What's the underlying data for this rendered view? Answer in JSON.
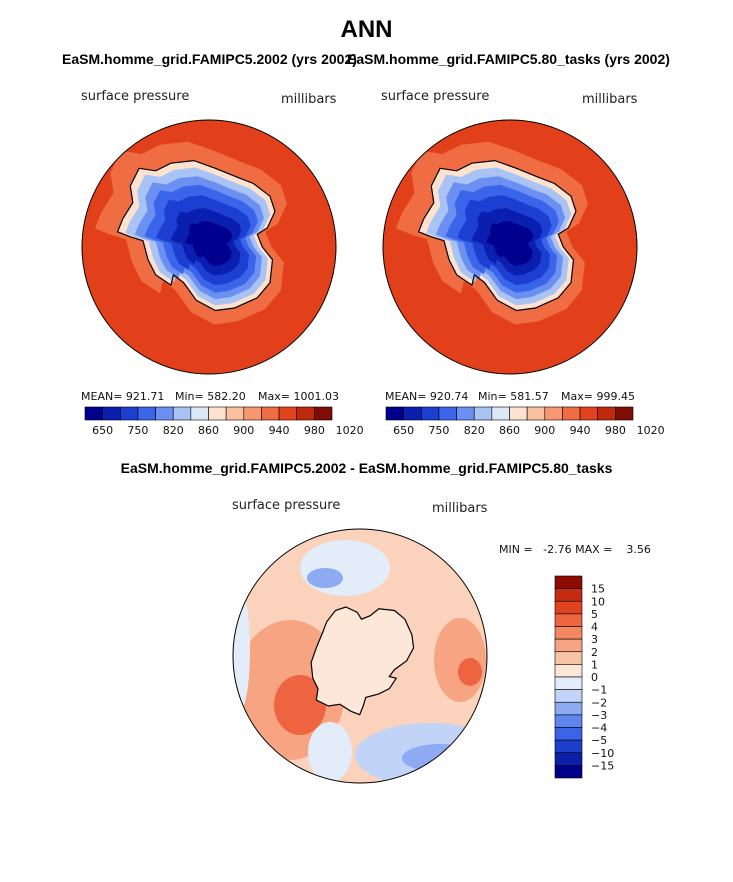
{
  "title": "ANN",
  "panel_titles": {
    "left": "EaSM.homme_grid.FAMIPC5.2002 (yrs 2002)",
    "right": "EaSM.homme_grid.FAMIPC5.80_tasks (yrs 2002)",
    "diff": "EaSM.homme_grid.FAMIPC5.2002 - EaSM.homme_grid.FAMIPC5.80_tasks"
  },
  "variable": "surface pressure",
  "units": "millibars",
  "colors": {
    "abs_scale": [
      "#00008f",
      "#0a1fb0",
      "#1c3fd1",
      "#3a64ea",
      "#6c8ff2",
      "#a9c3f5",
      "#dbe8f7",
      "#fde3cf",
      "#fbc0a0",
      "#f79870",
      "#f06c42",
      "#e1431c",
      "#bf2a0c",
      "#7f0d06"
    ],
    "diff_scale": [
      "#00008a",
      "#0b1fab",
      "#1c3ecb",
      "#3965e6",
      "#5e86ee",
      "#8eaaf3",
      "#c1d3f6",
      "#e2edf9",
      "#fde6d6",
      "#f9c3a6",
      "#f7a482",
      "#f48762",
      "#ee6440",
      "#e0441f",
      "#c62a11",
      "#8c0c04"
    ],
    "ocean_abs": "#e2401a",
    "ocean_abs_inner": "#f06c42",
    "diff_base": "#fbd2bb"
  },
  "chart_data": [
    {
      "type": "heatmap",
      "panel": "left",
      "projection": "south polar stereographic",
      "title": "EaSM.homme_grid.FAMIPC5.2002 (yrs 2002)",
      "variable": "surface pressure",
      "units": "millibars",
      "mean": 921.71,
      "min": 582.2,
      "max": 1001.03,
      "mean_label": "MEAN= 921.71",
      "min_label": "Min= 582.20",
      "max_label": "Max= 1001.03",
      "colorbar_ticks": [
        "650",
        "750",
        "820",
        "860",
        "900",
        "940",
        "980",
        "1020"
      ],
      "contour_levels": [
        650,
        700,
        750,
        800,
        820,
        840,
        860,
        880,
        900,
        920,
        940,
        960,
        980,
        1000,
        1020
      ]
    },
    {
      "type": "heatmap",
      "panel": "right",
      "projection": "south polar stereographic",
      "title": "EaSM.homme_grid.FAMIPC5.80_tasks (yrs 2002)",
      "variable": "surface pressure",
      "units": "millibars",
      "mean": 920.74,
      "min": 581.57,
      "max": 999.45,
      "mean_label": "MEAN= 920.74",
      "min_label": "Min= 581.57",
      "max_label": "Max= 999.45",
      "colorbar_ticks": [
        "650",
        "750",
        "820",
        "860",
        "900",
        "940",
        "980",
        "1020"
      ],
      "contour_levels": [
        650,
        700,
        750,
        800,
        820,
        840,
        860,
        880,
        900,
        920,
        940,
        960,
        980,
        1000,
        1020
      ]
    },
    {
      "type": "heatmap",
      "panel": "difference",
      "projection": "south polar stereographic",
      "title": "EaSM.homme_grid.FAMIPC5.2002 - EaSM.homme_grid.FAMIPC5.80_tasks",
      "variable": "surface pressure",
      "units": "millibars",
      "min": -2.76,
      "max": 3.56,
      "minmax_label": "MIN =   -2.76 MAX =    3.56",
      "colorbar_levels": [
        "15",
        "10",
        "5",
        "4",
        "3",
        "2",
        "1",
        "0",
        "−1",
        "−2",
        "−3",
        "−4",
        "−5",
        "−10",
        "−15"
      ]
    }
  ]
}
